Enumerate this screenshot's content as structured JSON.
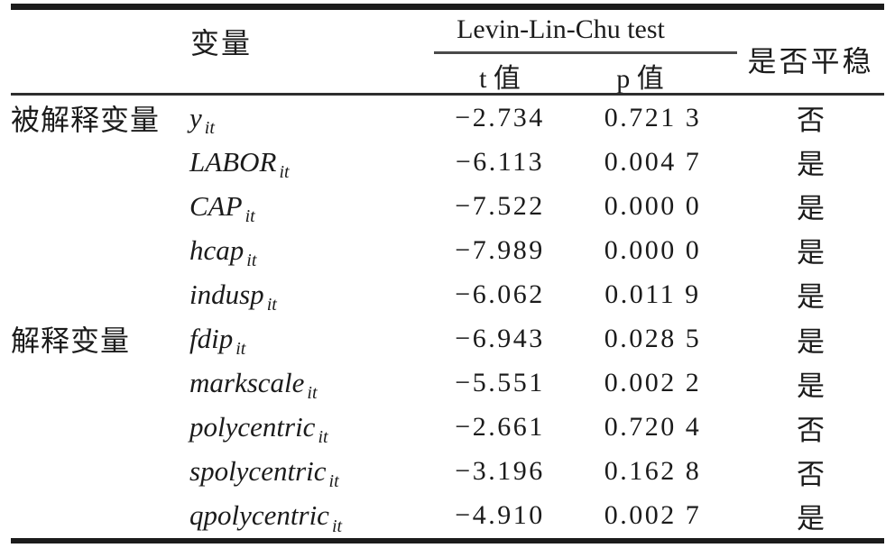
{
  "table": {
    "headers": {
      "variable": "变量",
      "test_group": "Levin-Lin-Chu test",
      "t_label": "t 值",
      "p_label": "p 值",
      "stationary": "是否平稳"
    },
    "rows": [
      {
        "category": "被解释变量",
        "variable": "y",
        "subscript": "it",
        "t": "−2.734",
        "p": "0.721 3",
        "stationary": "否"
      },
      {
        "category": "",
        "variable": "LABOR",
        "subscript": "it",
        "t": "−6.113",
        "p": "0.004 7",
        "stationary": "是"
      },
      {
        "category": "",
        "variable": "CAP",
        "subscript": "it",
        "t": "−7.522",
        "p": "0.000 0",
        "stationary": "是"
      },
      {
        "category": "",
        "variable": "hcap",
        "subscript": "it",
        "t": "−7.989",
        "p": "0.000 0",
        "stationary": "是"
      },
      {
        "category": "",
        "variable": "indusp",
        "subscript": "it",
        "t": "−6.062",
        "p": "0.011 9",
        "stationary": "是"
      },
      {
        "category": "解释变量",
        "variable": "fdip",
        "subscript": "it",
        "t": "−6.943",
        "p": "0.028 5",
        "stationary": "是"
      },
      {
        "category": "",
        "variable": "markscale",
        "subscript": "it",
        "t": "−5.551",
        "p": "0.002 2",
        "stationary": "是"
      },
      {
        "category": "",
        "variable": "polycentric",
        "subscript": "it",
        "t": "−2.661",
        "p": "0.720 4",
        "stationary": "否"
      },
      {
        "category": "",
        "variable": "spolycentric",
        "subscript": "it",
        "t": "−3.196",
        "p": "0.162 8",
        "stationary": "否"
      },
      {
        "category": "",
        "variable": "qpolycentric",
        "subscript": "it",
        "t": "−4.910",
        "p": "0.002 7",
        "stationary": "是"
      }
    ]
  },
  "colors": {
    "text": "#1b1b1b",
    "thick_rule": "#1c1c1c",
    "sub_rule": "#4a4a4a",
    "background": "#ffffff"
  }
}
